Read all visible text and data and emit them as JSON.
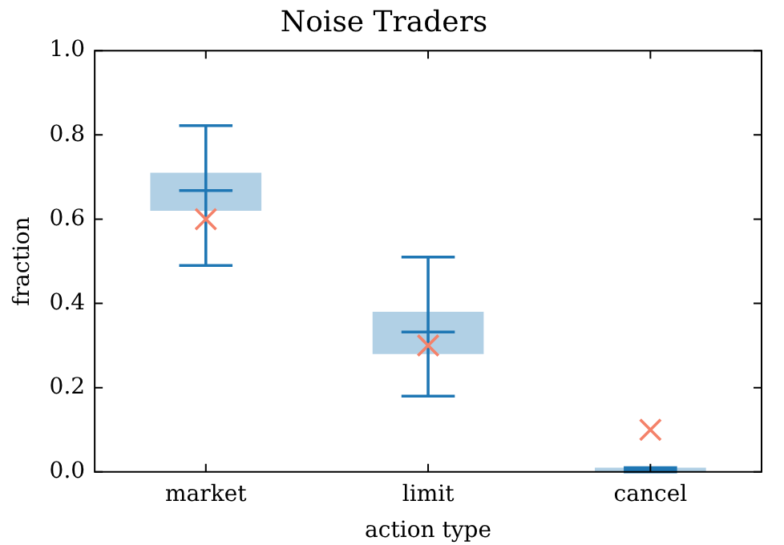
{
  "chart_data": {
    "type": "box",
    "title": "Noise Traders",
    "xlabel": "action type",
    "ylabel": "fraction",
    "categories": [
      "market",
      "limit",
      "cancel"
    ],
    "boxes": [
      {
        "low": 0.49,
        "q1": 0.62,
        "median": 0.668,
        "q3": 0.71,
        "high": 0.822
      },
      {
        "low": 0.18,
        "q1": 0.28,
        "median": 0.332,
        "q3": 0.38,
        "high": 0.51
      },
      {
        "low": 0.0,
        "q1": 0.0,
        "median": 0.005,
        "q3": 0.01,
        "high": 0.01
      }
    ],
    "color": "#1f77b4",
    "series": [
      {
        "type": "scatter",
        "x": [
          "market",
          "limit",
          "cancel"
        ],
        "values": [
          0.6,
          0.3,
          0.1
        ],
        "color": "#f4826a",
        "marker": "cross"
      }
    ],
    "ylim": [
      0,
      1
    ],
    "yticks": [
      {
        "value": 0,
        "label": "0.0"
      },
      {
        "value": 0.2,
        "label": "0.2"
      },
      {
        "value": 0.4,
        "label": "0.4"
      },
      {
        "value": 0.6,
        "label": "0.6"
      },
      {
        "value": 0.8,
        "label": "0.8"
      },
      {
        "value": 1,
        "label": "1.0"
      }
    ],
    "grid": false,
    "legend": false
  }
}
